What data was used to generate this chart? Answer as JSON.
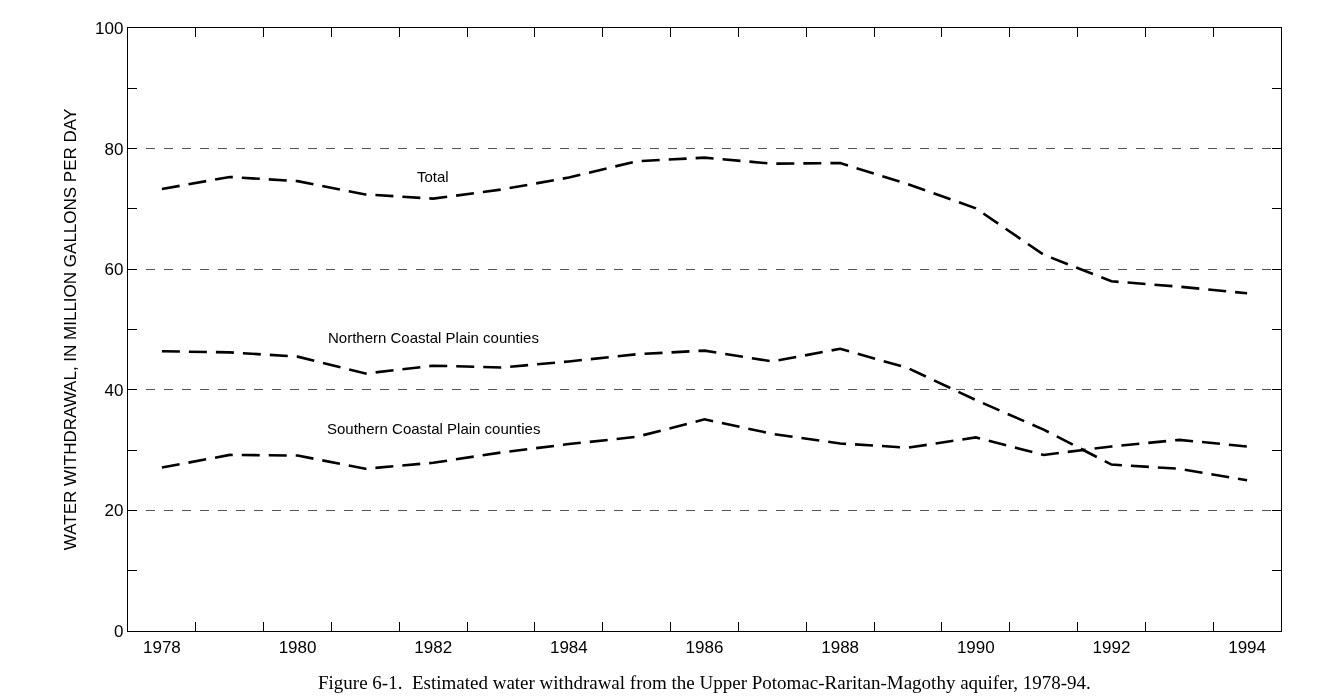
{
  "chart_data": {
    "type": "line",
    "ylabel": "WATER WITHDRAWAL, IN MILLION GALLONS PER DAY",
    "x": [
      1978,
      1979,
      1980,
      1981,
      1982,
      1983,
      1984,
      1985,
      1986,
      1987,
      1988,
      1989,
      1990,
      1991,
      1992,
      1993,
      1994
    ],
    "series": [
      {
        "name": "Total",
        "color": "#000000",
        "values": [
          73.3,
          75.3,
          74.6,
          72.4,
          71.7,
          73.2,
          75.2,
          77.9,
          78.5,
          77.5,
          77.6,
          74.1,
          70.1,
          62.4,
          58.0,
          57.1,
          56.0
        ]
      },
      {
        "name": "Northern Coastal Plain counties",
        "color": "#000000",
        "values": [
          46.4,
          46.2,
          45.5,
          42.7,
          44.0,
          43.7,
          44.7,
          45.9,
          46.5,
          44.7,
          46.8,
          43.6,
          38.3,
          33.4,
          27.6,
          26.9,
          25.0
        ]
      },
      {
        "name": "Southern Coastal Plain counties",
        "color": "#000000",
        "values": [
          27.1,
          29.2,
          29.1,
          26.9,
          27.9,
          29.6,
          31.0,
          32.2,
          35.1,
          32.7,
          31.1,
          30.4,
          32.1,
          29.2,
          30.6,
          31.7,
          30.6
        ]
      }
    ],
    "xlim": [
      1977.5,
      1994.5
    ],
    "xticks": [
      1978,
      {
        "value": 1978.5,
        "label": null
      },
      {
        "value": 1979.5,
        "label": null
      },
      1980,
      {
        "value": 1980.5,
        "label": null
      },
      {
        "value": 1981.5,
        "label": null
      },
      1982,
      {
        "value": 1982.5,
        "label": null
      },
      {
        "value": 1983.5,
        "label": null
      },
      1984,
      {
        "value": 1984.5,
        "label": null
      },
      {
        "value": 1985.5,
        "label": null
      },
      1986,
      {
        "value": 1986.5,
        "label": null
      },
      {
        "value": 1987.5,
        "label": null
      },
      1988,
      {
        "value": 1988.5,
        "label": null
      },
      {
        "value": 1989.5,
        "label": null
      },
      1990,
      {
        "value": 1990.5,
        "label": null
      },
      {
        "value": 1991.5,
        "label": null
      },
      1992,
      {
        "value": 1992.5,
        "label": null
      },
      {
        "value": 1993.5,
        "label": null
      },
      1994
    ],
    "ylim": [
      0,
      100
    ],
    "yticks": [
      0,
      {
        "value": 10,
        "label": null
      },
      20,
      {
        "value": 30,
        "label": null
      },
      40,
      {
        "value": 50,
        "label": null
      },
      60,
      {
        "value": 70,
        "label": null
      },
      80,
      {
        "value": 90,
        "label": null
      },
      100
    ],
    "grid": "y",
    "legend": false,
    "marker": "none",
    "line_style": "dashed",
    "annotations": [
      "Figure 6-1.  Estimated water withdrawal from the Upper Potomac-Raritan-Magothy aquifer, 1978-94."
    ]
  }
}
